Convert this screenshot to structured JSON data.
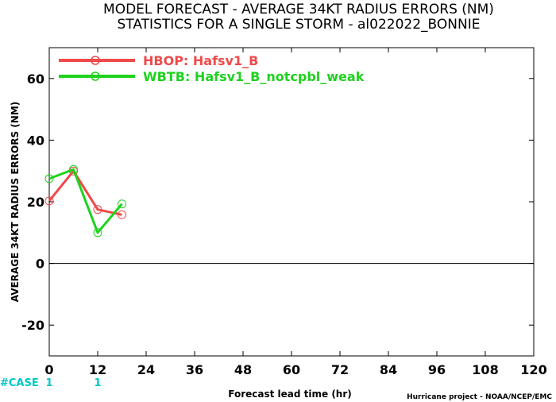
{
  "title_line1": "MODEL FORECAST - AVERAGE 34KT RADIUS ERRORS (NM)",
  "title_line2": "STATISTICS FOR A SINGLE STORM - al022022_BONNIE",
  "case_label": "#CASE",
  "credit": "Hurricane project - NOAA/NCEP/EMC",
  "chart_data": {
    "type": "line",
    "title": "MODEL FORECAST - AVERAGE 34KT RADIUS ERRORS (NM)",
    "subtitle": "STATISTICS FOR A SINGLE STORM - al022022_BONNIE",
    "xlabel": "Forecast lead time (hr)",
    "ylabel": "AVERAGE 34KT RADIUS ERRORS (NM)",
    "xlim": [
      0,
      120
    ],
    "ylim": [
      -30,
      70
    ],
    "xticks": [
      0,
      12,
      24,
      36,
      48,
      60,
      72,
      84,
      96,
      108,
      120
    ],
    "yticks": [
      -20,
      0,
      20,
      40,
      60
    ],
    "reference_line": 0,
    "legend_position": "top-left",
    "series": [
      {
        "name": "HBOP: Hafsv1_B",
        "color": "#f04a4a",
        "x": [
          0,
          6,
          12,
          18
        ],
        "y": [
          20.3,
          30.0,
          17.5,
          15.8
        ]
      },
      {
        "name": "WBTB: Hafsv1_B_notcpbl_weak",
        "color": "#1ed21e",
        "x": [
          0,
          6,
          12,
          18
        ],
        "y": [
          27.5,
          30.5,
          10.0,
          19.3
        ]
      }
    ],
    "case_counts": [
      {
        "x": 0,
        "label": "1"
      },
      {
        "x": 12,
        "label": "1"
      }
    ]
  }
}
